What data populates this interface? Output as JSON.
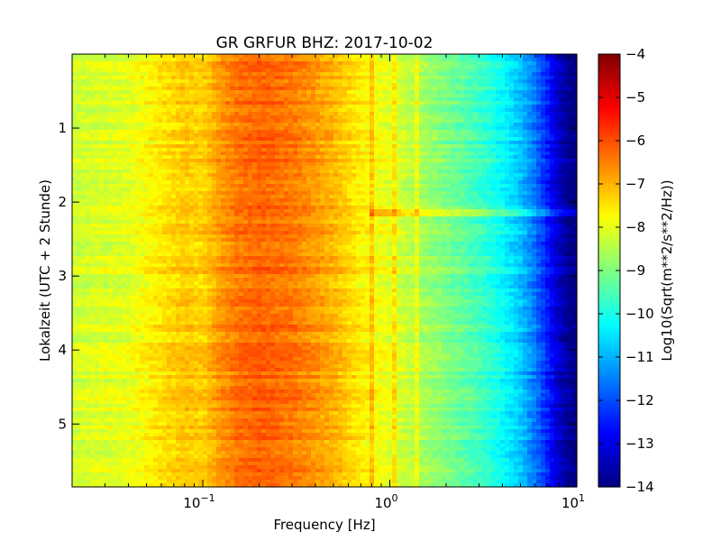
{
  "chart_data": {
    "type": "heatmap",
    "title": "GR GRFUR BHZ: 2017-10-02",
    "xlabel": "Frequency [Hz]",
    "ylabel": "Lokalzeit (UTC + 2 Stunde)",
    "colorbar_label": "Log10(Sqrt(m**2/s**2/Hz))",
    "colormap": "jet",
    "x_scale": "log",
    "xlim": [
      0.02,
      10
    ],
    "ylim": [
      5.85,
      0
    ],
    "clim": [
      -14,
      -4
    ],
    "x_ticks": [
      {
        "value": 0.1,
        "base": "10",
        "exp": "−1"
      },
      {
        "value": 1,
        "base": "10",
        "exp": "0"
      },
      {
        "value": 10,
        "base": "10",
        "exp": "1"
      }
    ],
    "y_ticks": [
      1,
      2,
      3,
      4,
      5
    ],
    "colorbar_ticks": [
      -4,
      -5,
      -6,
      -7,
      -8,
      -9,
      -10,
      -11,
      -12,
      -13,
      -14
    ],
    "spectral_profile": {
      "frequency_hz": [
        0.02,
        0.04,
        0.06,
        0.08,
        0.1,
        0.12,
        0.15,
        0.2,
        0.3,
        0.5,
        0.7,
        1.0,
        1.5,
        2.0,
        3.0,
        4.0,
        5.0,
        6.0,
        7.0,
        8.0,
        9.0,
        10.0
      ],
      "log10_amplitude": [
        -8.2,
        -8.0,
        -7.5,
        -7.2,
        -7.3,
        -6.8,
        -6.4,
        -6.2,
        -6.4,
        -7.0,
        -7.6,
        -8.0,
        -8.6,
        -9.0,
        -9.6,
        -10.2,
        -10.8,
        -11.6,
        -12.5,
        -13.3,
        -13.8,
        -14.0
      ]
    },
    "narrowband_lines_hz": [
      0.8,
      1.05,
      1.4
    ],
    "broadband_events_hours": [
      2.15
    ],
    "grid": false,
    "legend": "colorbar-right"
  }
}
